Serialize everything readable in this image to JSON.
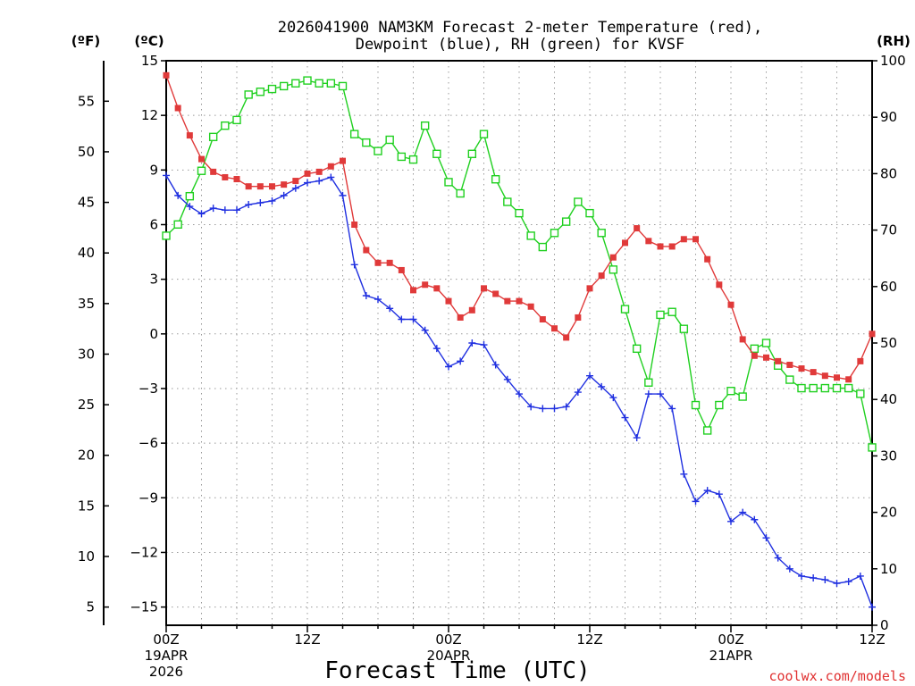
{
  "chart_data": {
    "type": "line",
    "title_line1": "2026041900 NAM3KM Forecast 2-meter Temperature (red),",
    "title_line2": "Dewpoint (blue), RH (green) for KVSF",
    "xlabel": "Forecast Time (UTC)",
    "credit": "coolwx.com/models",
    "unit_f": "(ºF)",
    "unit_c": "(ºC)",
    "unit_rh": "(RH)",
    "x_hours_range": [
      0,
      60
    ],
    "celsius_range": [
      -16,
      15
    ],
    "rh_range": [
      0,
      100
    ],
    "fahrenheit_ticks": [
      "5",
      "10",
      "15",
      "20",
      "25",
      "30",
      "35",
      "40",
      "45",
      "50",
      "55"
    ],
    "fahrenheit_values": [
      5,
      10,
      15,
      20,
      25,
      30,
      35,
      40,
      45,
      50,
      55
    ],
    "celsius_ticks": [
      "15",
      "12",
      "9",
      "6",
      "3",
      "0",
      "−3",
      "−6",
      "−9",
      "−12",
      "−15"
    ],
    "celsius_values": [
      15,
      12,
      9,
      6,
      3,
      0,
      -3,
      -6,
      -9,
      -12,
      -15
    ],
    "rh_ticks": [
      "100",
      "90",
      "80",
      "70",
      "60",
      "50",
      "40",
      "30",
      "20",
      "10",
      "0"
    ],
    "rh_values": [
      100,
      90,
      80,
      70,
      60,
      50,
      40,
      30,
      20,
      10,
      0
    ],
    "x_ticks": [
      {
        "hour": 0,
        "label": "00Z",
        "date": "19APR",
        "year": "2026"
      },
      {
        "hour": 12,
        "label": "12Z",
        "date": "",
        "year": ""
      },
      {
        "hour": 24,
        "label": "00Z",
        "date": "20APR",
        "year": ""
      },
      {
        "hour": 36,
        "label": "12Z",
        "date": "",
        "year": ""
      },
      {
        "hour": 48,
        "label": "00Z",
        "date": "21APR",
        "year": ""
      },
      {
        "hour": 60,
        "label": "12Z",
        "date": "",
        "year": ""
      }
    ],
    "series": [
      {
        "name": "Temperature",
        "unit": "C",
        "color": "#e03a3a",
        "marker": "filled-square",
        "x": [
          0,
          1,
          2,
          3,
          4,
          5,
          6,
          7,
          8,
          9,
          10,
          11,
          12,
          13,
          14,
          15,
          16,
          17,
          18,
          19,
          20,
          21,
          22,
          23,
          24,
          25,
          26,
          27,
          28,
          29,
          30,
          31,
          32,
          33,
          34,
          35,
          36,
          37,
          38,
          39,
          40,
          41,
          42,
          43,
          44,
          45,
          46,
          47,
          48,
          49,
          50,
          51,
          52,
          53,
          54,
          55,
          56,
          57,
          58,
          59,
          60
        ],
        "values": [
          14.2,
          12.4,
          10.9,
          9.6,
          8.9,
          8.6,
          8.5,
          8.1,
          8.1,
          8.1,
          8.2,
          8.4,
          8.8,
          8.9,
          9.2,
          9.5,
          6.0,
          4.6,
          3.9,
          3.9,
          3.5,
          2.4,
          2.7,
          2.5,
          1.8,
          0.9,
          1.3,
          2.5,
          2.2,
          1.8,
          1.8,
          1.5,
          0.8,
          0.3,
          -0.2,
          0.9,
          2.5,
          3.2,
          4.2,
          5.0,
          5.8,
          5.1,
          4.8,
          4.8,
          5.2,
          5.2,
          4.1,
          2.7,
          1.6,
          -0.3,
          -1.2,
          -1.3,
          -1.5,
          -1.7,
          -1.9,
          -2.1,
          -2.3,
          -2.4,
          -2.5,
          -1.5,
          0.0
        ]
      },
      {
        "name": "Dewpoint",
        "unit": "C",
        "color": "#2030e0",
        "marker": "plus",
        "x": [
          0,
          1,
          2,
          3,
          4,
          5,
          6,
          7,
          8,
          9,
          10,
          11,
          12,
          13,
          14,
          15,
          16,
          17,
          18,
          19,
          20,
          21,
          22,
          23,
          24,
          25,
          26,
          27,
          28,
          29,
          30,
          31,
          32,
          33,
          34,
          35,
          36,
          37,
          38,
          39,
          40,
          41,
          42,
          43,
          44,
          45,
          46,
          47,
          48,
          49,
          50,
          51,
          52,
          53,
          54,
          55,
          56,
          57,
          58,
          59,
          60
        ],
        "values": [
          8.7,
          7.6,
          7.0,
          6.6,
          6.9,
          6.8,
          6.8,
          7.1,
          7.2,
          7.3,
          7.6,
          8.0,
          8.3,
          8.4,
          8.6,
          7.6,
          3.8,
          2.1,
          1.9,
          1.4,
          0.8,
          0.8,
          0.2,
          -0.8,
          -1.8,
          -1.5,
          -0.5,
          -0.6,
          -1.7,
          -2.5,
          -3.3,
          -4.0,
          -4.1,
          -4.1,
          -4.0,
          -3.2,
          -2.3,
          -2.9,
          -3.5,
          -4.6,
          -5.7,
          -3.3,
          -3.3,
          -4.1,
          -7.7,
          -9.2,
          -8.6,
          -8.8,
          -10.3,
          -9.8,
          -10.2,
          -11.2,
          -12.3,
          -12.9,
          -13.3,
          -13.4,
          -13.5,
          -13.7,
          -13.6,
          -13.3,
          -15.0
        ]
      },
      {
        "name": "RH",
        "unit": "%",
        "color": "#20d020",
        "marker": "open-square",
        "x": [
          0,
          1,
          2,
          3,
          4,
          5,
          6,
          7,
          8,
          9,
          10,
          11,
          12,
          13,
          14,
          15,
          16,
          17,
          18,
          19,
          20,
          21,
          22,
          23,
          24,
          25,
          26,
          27,
          28,
          29,
          30,
          31,
          32,
          33,
          34,
          35,
          36,
          37,
          38,
          39,
          40,
          41,
          42,
          43,
          44,
          45,
          46,
          47,
          48,
          49,
          50,
          51,
          52,
          53,
          54,
          55,
          56,
          57,
          58,
          59,
          60
        ],
        "values": [
          69,
          71,
          76,
          80.5,
          86.5,
          88.5,
          89.5,
          94,
          94.5,
          95,
          95.5,
          96,
          96.5,
          96,
          96,
          95.5,
          87,
          85.5,
          84,
          86,
          83,
          82.5,
          88.5,
          83.5,
          78.5,
          76.5,
          83.5,
          87,
          79,
          75,
          73,
          69,
          67,
          69.5,
          71.5,
          75,
          73,
          69.5,
          63,
          56,
          49,
          43,
          55,
          55.5,
          52.5,
          39,
          34.5,
          39,
          41.5,
          40.5,
          49,
          50,
          46,
          43.5,
          42,
          42,
          42,
          42,
          42,
          41,
          31.5
        ]
      }
    ]
  }
}
